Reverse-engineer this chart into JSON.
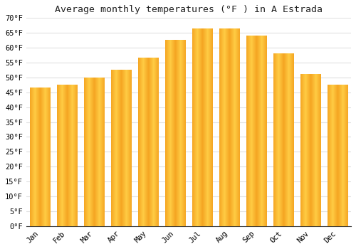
{
  "title": "Average monthly temperatures (°F ) in A Estrada",
  "months": [
    "Jan",
    "Feb",
    "Mar",
    "Apr",
    "May",
    "Jun",
    "Jul",
    "Aug",
    "Sep",
    "Oct",
    "Nov",
    "Dec"
  ],
  "values": [
    46.5,
    47.5,
    50.0,
    52.5,
    56.5,
    62.5,
    66.5,
    66.5,
    64.0,
    58.0,
    51.0,
    47.5
  ],
  "bar_color_dark": "#F5A623",
  "bar_color_light": "#FFCC44",
  "background_color": "#ffffff",
  "grid_color": "#e0e0e0",
  "ylim": [
    0,
    70
  ],
  "yticks": [
    0,
    5,
    10,
    15,
    20,
    25,
    30,
    35,
    40,
    45,
    50,
    55,
    60,
    65,
    70
  ],
  "title_fontsize": 9.5,
  "tick_fontsize": 7.5,
  "font_family": "monospace"
}
